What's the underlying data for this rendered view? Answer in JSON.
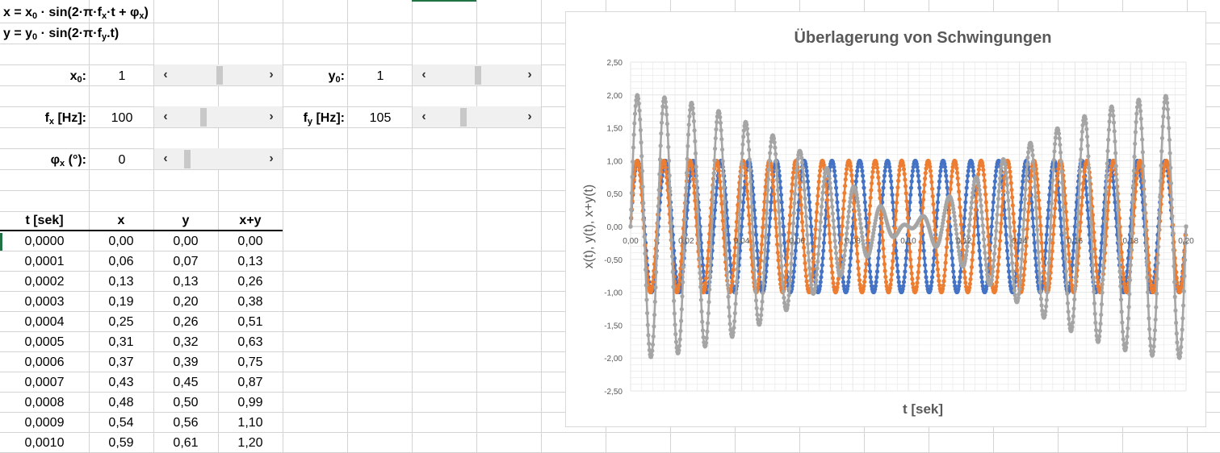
{
  "formulas": {
    "x": {
      "pre": "x = x",
      "sub1": "0",
      "mid": " · sin(2·π·f",
      "sub2": "x",
      "post": "·t + φ",
      "sub3": "x",
      "end": ")"
    },
    "y": {
      "pre": "y = y",
      "sub1": "0",
      "mid": " · sin(2·π·f",
      "sub2": "y",
      "post": ".t)"
    }
  },
  "params": {
    "x0": {
      "pre": "x",
      "sub": "0",
      "post": ":",
      "value": "1",
      "slider": 0.5
    },
    "fx": {
      "pre": "f",
      "sub": "x",
      "post": " [Hz]:",
      "value": "100",
      "slider": 0.3
    },
    "phix": {
      "pre": "φ",
      "sub": "x",
      "post": " (°):",
      "value": "0",
      "slider": 0.1
    },
    "y0": {
      "pre": "y",
      "sub": "0",
      "post": ":",
      "value": "1",
      "slider": 0.5
    },
    "fy": {
      "pre": "f",
      "sub": "y",
      "post": " [Hz]:",
      "value": "105",
      "slider": 0.32
    }
  },
  "arrows": {
    "left": "‹",
    "right": "›"
  },
  "table": {
    "headers": [
      "t [sek]",
      "x",
      "y",
      "x+y"
    ],
    "rows": [
      [
        "0,0000",
        "0,00",
        "0,00",
        "0,00"
      ],
      [
        "0,0001",
        "0,06",
        "0,07",
        "0,13"
      ],
      [
        "0,0002",
        "0,13",
        "0,13",
        "0,26"
      ],
      [
        "0,0003",
        "0,19",
        "0,20",
        "0,38"
      ],
      [
        "0,0004",
        "0,25",
        "0,26",
        "0,51"
      ],
      [
        "0,0005",
        "0,31",
        "0,32",
        "0,63"
      ],
      [
        "0,0006",
        "0,37",
        "0,39",
        "0,75"
      ],
      [
        "0,0007",
        "0,43",
        "0,45",
        "0,87"
      ],
      [
        "0,0008",
        "0,48",
        "0,50",
        "0,99"
      ],
      [
        "0,0009",
        "0,54",
        "0,56",
        "1,10"
      ],
      [
        "0,0010",
        "0,59",
        "0,61",
        "1,20"
      ]
    ]
  },
  "chart_data": {
    "type": "scatter",
    "title": "Überlagerung von Schwingungen",
    "xlabel": "t [sek]",
    "ylabel": "x(t), y(t), x+y(t)",
    "xlim": [
      0,
      0.2
    ],
    "ylim": [
      -2.5,
      2.5
    ],
    "x_ticks": [
      "0,00",
      "0,02",
      "0,04",
      "0,06",
      "0,08",
      "0,10",
      "0,12",
      "0,14",
      "0,16",
      "0,18",
      "0,20"
    ],
    "y_ticks": [
      "2,50",
      "2,00",
      "1,50",
      "1,00",
      "0,50",
      "0,00",
      "-0,50",
      "-1,00",
      "-1,50",
      "-2,00",
      "-2,50"
    ],
    "grid": true,
    "sampling": {
      "t_start": 0,
      "t_end": 0.2,
      "dt": 0.0001
    },
    "series": [
      {
        "formula": "x = x0 · sin(2·π·fx·t + φx)",
        "x0": 1,
        "f": 100,
        "phi": 0,
        "color": "#4472c4"
      },
      {
        "formula": "y = y0 · sin(2·π·fy.t)",
        "y0": 1,
        "f": 105,
        "color": "#ed7d31"
      },
      {
        "formula": "x+y",
        "color": "#a5a5a5"
      }
    ]
  },
  "colors": {
    "gridline": "#d4d4d4",
    "chart_grid": "#e6e6e6",
    "title": "#595959",
    "axis_text": "#595959",
    "accent": "#217346"
  }
}
